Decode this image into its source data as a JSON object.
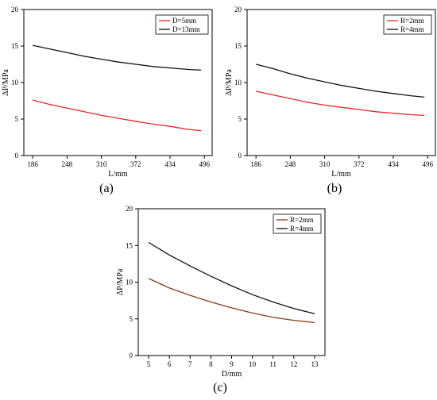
{
  "colors": {
    "red": "#e8262b",
    "black": "#111111",
    "brown": "#8b3a1e"
  },
  "chart_data": [
    {
      "type": "line",
      "panel_label": "(a)",
      "xlabel": "L/mm",
      "ylabel": "ΔP/MPa",
      "xticks": [
        186,
        248,
        310,
        372,
        434,
        496
      ],
      "yticks": [
        0,
        5,
        10,
        15,
        20
      ],
      "xlim": [
        170,
        510
      ],
      "ylim": [
        0,
        20
      ],
      "legend_position": "top-right",
      "x": [
        186,
        217,
        248,
        279,
        310,
        341,
        372,
        403,
        434,
        465,
        490
      ],
      "series": [
        {
          "name": "D=5mm",
          "color": "red",
          "values": [
            7.6,
            7.0,
            6.5,
            6.0,
            5.5,
            5.1,
            4.7,
            4.3,
            4.0,
            3.6,
            3.4
          ]
        },
        {
          "name": "D=13mm",
          "color": "black",
          "values": [
            15.1,
            14.6,
            14.1,
            13.6,
            13.2,
            12.8,
            12.5,
            12.2,
            12.0,
            11.8,
            11.7
          ]
        }
      ]
    },
    {
      "type": "line",
      "panel_label": "(b)",
      "xlabel": "L/mm",
      "ylabel": "ΔP/MPa",
      "xticks": [
        186,
        248,
        310,
        372,
        434,
        496
      ],
      "yticks": [
        0,
        5,
        10,
        15,
        20
      ],
      "xlim": [
        170,
        510
      ],
      "ylim": [
        0,
        20
      ],
      "legend_position": "top-right",
      "x": [
        186,
        217,
        248,
        279,
        310,
        341,
        372,
        403,
        434,
        465,
        490
      ],
      "series": [
        {
          "name": "R=2mm",
          "color": "red",
          "values": [
            8.8,
            8.3,
            7.8,
            7.3,
            6.9,
            6.6,
            6.3,
            6.0,
            5.8,
            5.6,
            5.5
          ]
        },
        {
          "name": "R=4mm",
          "color": "black",
          "values": [
            12.5,
            11.9,
            11.2,
            10.6,
            10.1,
            9.6,
            9.2,
            8.8,
            8.5,
            8.2,
            8.0
          ]
        }
      ]
    },
    {
      "type": "line",
      "panel_label": "(c)",
      "xlabel": "D/mm",
      "ylabel": "ΔP/MPa",
      "xticks": [
        5,
        6,
        7,
        8,
        9,
        10,
        11,
        12,
        13
      ],
      "yticks": [
        0,
        5,
        10,
        15,
        20
      ],
      "xlim": [
        4.5,
        13.5
      ],
      "ylim": [
        0,
        20
      ],
      "legend_position": "top-right",
      "x": [
        5,
        6,
        7,
        8,
        9,
        10,
        11,
        12,
        13
      ],
      "series": [
        {
          "name": "R=2mm",
          "color": "brown",
          "values": [
            10.5,
            9.2,
            8.2,
            7.3,
            6.5,
            5.8,
            5.2,
            4.8,
            4.5
          ]
        },
        {
          "name": "R=4mm",
          "color": "black",
          "values": [
            15.4,
            13.7,
            12.2,
            10.8,
            9.5,
            8.3,
            7.3,
            6.4,
            5.7
          ]
        }
      ]
    }
  ]
}
